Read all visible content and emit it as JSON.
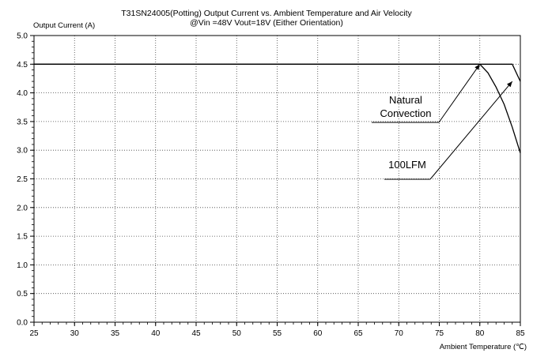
{
  "chart_data": {
    "type": "line",
    "title": "T31SN24005(Potting) Output Current vs. Ambient Temperature and Air Velocity",
    "subtitle": "@Vin =48V Vout=18V (Either Orientation)",
    "ylabel": "Output Current (A)",
    "xlabel": "Ambient Temperature (℃)",
    "xlim": [
      25,
      85
    ],
    "ylim": [
      0,
      5
    ],
    "xticks": [
      "25",
      "30",
      "35",
      "40",
      "45",
      "50",
      "55",
      "60",
      "65",
      "70",
      "75",
      "80",
      "85"
    ],
    "yticks": [
      "0.0",
      "0.5",
      "1.0",
      "1.5",
      "2.0",
      "2.5",
      "3.0",
      "3.5",
      "4.0",
      "4.5",
      "5.0"
    ],
    "grid": true,
    "series": [
      {
        "x": [
          25,
          80,
          81,
          82,
          83,
          84,
          85
        ],
        "y": [
          4.5,
          4.5,
          4.35,
          4.1,
          3.8,
          3.4,
          2.95
        ]
      },
      {
        "x": [
          25,
          84,
          85
        ],
        "y": [
          4.5,
          4.5,
          4.2
        ]
      }
    ],
    "annotations": [
      {
        "lines": [
          "Natural",
          "Convection"
        ],
        "points_to": [
          80,
          4.5
        ]
      },
      {
        "lines": [
          "100LFM"
        ],
        "points_to": [
          84,
          4.2
        ]
      }
    ]
  }
}
